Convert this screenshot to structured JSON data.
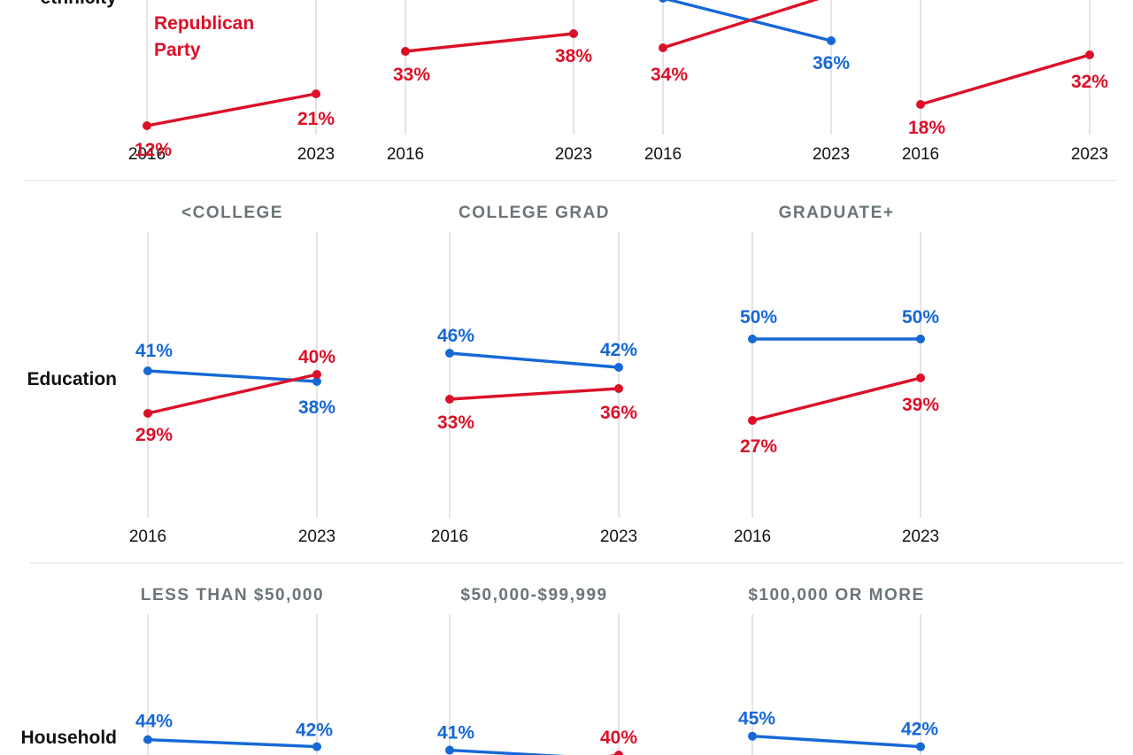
{
  "colors": {
    "democratic": "#1668d6",
    "republican": "#dc1028",
    "guide": "#d6d6d6",
    "title": "#6b7478",
    "text": "#111111"
  },
  "rows": [
    {
      "label": "ethnicity",
      "lines": [
        "ethnicity"
      ]
    },
    {
      "label": "Education",
      "lines": [
        "Education"
      ]
    },
    {
      "label": "Household",
      "lines": [
        "Household"
      ]
    }
  ],
  "legend": {
    "republican_label": "Republican Party",
    "lines": [
      "Republican",
      "Party"
    ]
  },
  "chart_data": [
    {
      "type": "line",
      "row": "ethnicity",
      "title": "",
      "x": [
        "2016",
        "2023"
      ],
      "series": [
        {
          "party": "republican",
          "values": [
            12,
            21
          ]
        }
      ]
    },
    {
      "type": "line",
      "row": "ethnicity",
      "title": "",
      "x": [
        "2016",
        "2023"
      ],
      "series": [
        {
          "party": "republican",
          "values": [
            33,
            38
          ]
        }
      ]
    },
    {
      "type": "line",
      "row": "ethnicity",
      "title": "",
      "x": [
        "2016",
        "2023"
      ],
      "series": [
        {
          "party": "democratic",
          "values": [
            null,
            36
          ]
        },
        {
          "party": "republican",
          "values": [
            34,
            null
          ]
        }
      ]
    },
    {
      "type": "line",
      "row": "ethnicity",
      "title": "",
      "x": [
        "2016",
        "2023"
      ],
      "series": [
        {
          "party": "republican",
          "values": [
            18,
            32
          ]
        }
      ]
    },
    {
      "type": "line",
      "row": "Education",
      "title": "<COLLEGE",
      "x": [
        "2016",
        "2023"
      ],
      "series": [
        {
          "party": "democratic",
          "values": [
            41,
            38
          ]
        },
        {
          "party": "republican",
          "values": [
            29,
            40
          ]
        }
      ]
    },
    {
      "type": "line",
      "row": "Education",
      "title": "COLLEGE GRAD",
      "x": [
        "2016",
        "2023"
      ],
      "series": [
        {
          "party": "democratic",
          "values": [
            46,
            42
          ]
        },
        {
          "party": "republican",
          "values": [
            33,
            36
          ]
        }
      ]
    },
    {
      "type": "line",
      "row": "Education",
      "title": "GRADUATE+",
      "x": [
        "2016",
        "2023"
      ],
      "series": [
        {
          "party": "democratic",
          "values": [
            50,
            50
          ]
        },
        {
          "party": "republican",
          "values": [
            27,
            39
          ]
        }
      ]
    },
    {
      "type": "line",
      "row": "Household",
      "title": "LESS THAN $50,000",
      "x": [
        "2016",
        "2023"
      ],
      "series": [
        {
          "party": "democratic",
          "values": [
            44,
            42
          ]
        }
      ]
    },
    {
      "type": "line",
      "row": "Household",
      "title": "$50,000-$99,999",
      "x": [
        "2016",
        "2023"
      ],
      "series": [
        {
          "party": "democratic",
          "values": [
            41,
            null
          ]
        },
        {
          "party": "republican",
          "values": [
            null,
            40
          ]
        }
      ]
    },
    {
      "type": "line",
      "row": "Household",
      "title": "$100,000 OR MORE",
      "x": [
        "2016",
        "2023"
      ],
      "series": [
        {
          "party": "democratic",
          "values": [
            45,
            42
          ]
        }
      ]
    }
  ]
}
